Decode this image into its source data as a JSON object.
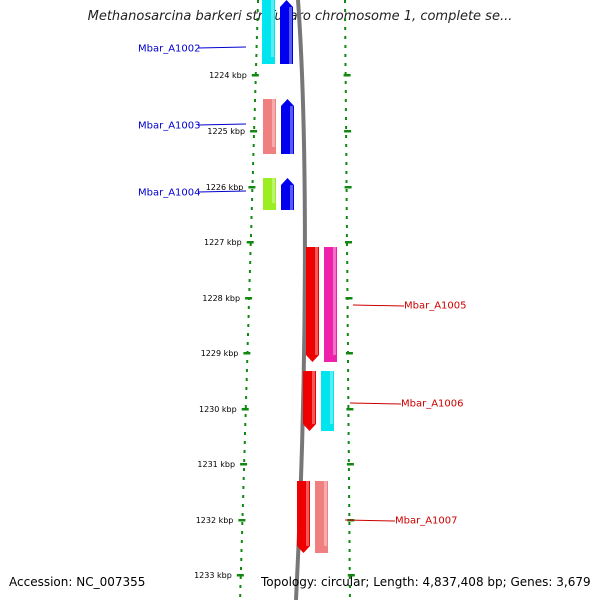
{
  "title": "Methanosarcina barkeri str. fusaro chromosome 1, complete se...",
  "accession": "Accession: NC_007355",
  "summary": "Topology: circular; Length: 4,837,408 bp; Genes: 3,679",
  "colors": {
    "label_blue": "#0000cc",
    "label_red": "#cc0000",
    "backbone": "#777777",
    "tick": "#118811"
  },
  "ruler_ticks": [
    "1224 kbp",
    "1225 kbp",
    "1226 kbp",
    "1227 kbp",
    "1228 kbp",
    "1229 kbp",
    "1230 kbp",
    "1231 kbp",
    "1232 kbp",
    "1233 kbp"
  ],
  "genes": [
    {
      "label": "Mbar_A1002",
      "color_group": "blue",
      "bars": [
        "#00e5ee",
        "#0000ee"
      ]
    },
    {
      "label": "Mbar_A1003",
      "color_group": "blue",
      "bars": [
        "#f08080",
        "#0000ee"
      ]
    },
    {
      "label": "Mbar_A1004",
      "color_group": "blue",
      "bars": [
        "#9aee22",
        "#0000ee"
      ]
    },
    {
      "label": "Mbar_A1005",
      "color_group": "red",
      "bars": [
        "#ee0000",
        "#ee22aa"
      ]
    },
    {
      "label": "Mbar_A1006",
      "color_group": "red",
      "bars": [
        "#ee0000",
        "#00e5ee"
      ]
    },
    {
      "label": "Mbar_A1007",
      "color_group": "red",
      "bars": [
        "#ee0000",
        "#f08080"
      ]
    }
  ]
}
